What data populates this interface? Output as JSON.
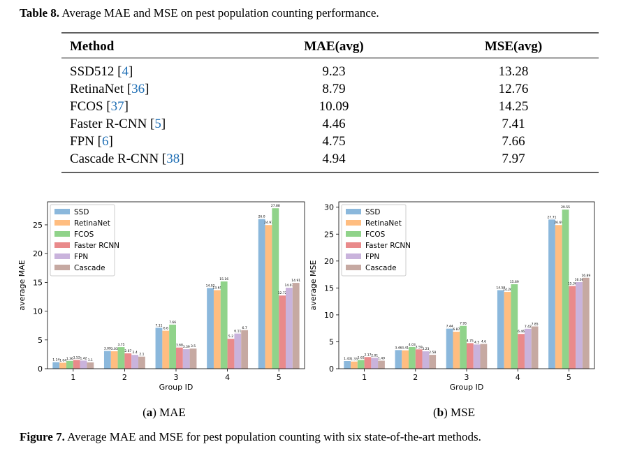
{
  "table": {
    "caption": [
      "Table 8.",
      " Average MAE and MSE on pest population counting performance."
    ],
    "header": [
      "Method",
      "MAE(avg)",
      "MSE(avg)"
    ],
    "rows": [
      [
        [
          "SSD512 [",
          "4",
          "]"
        ],
        9.23,
        13.28
      ],
      [
        [
          "RetinaNet [",
          "36",
          "]"
        ],
        8.79,
        12.76
      ],
      [
        [
          "FCOS [",
          "37",
          "]"
        ],
        10.09,
        14.25
      ],
      [
        [
          "Faster R-CNN [",
          "5",
          "]"
        ],
        4.46,
        7.41
      ],
      [
        [
          "FPN [",
          "6",
          "]"
        ],
        4.75,
        7.66
      ],
      [
        [
          "Cascade R-CNN [",
          "38",
          "]"
        ],
        4.94,
        7.97
      ]
    ]
  },
  "chart_data": [
    {
      "type": "bar",
      "xlabel": "Group ID",
      "ylabel": "average MAE",
      "legend": "upper left",
      "categories": [
        "1",
        "2",
        "3",
        "4",
        "5"
      ],
      "ylim": [
        0,
        29
      ],
      "yticks": [
        0,
        5,
        10,
        15,
        20,
        25
      ],
      "series": [
        {
          "name": "SSD",
          "color": "#8bb8dc",
          "values": [
            1.14,
            3.09,
            7.11,
            14.02,
            26.0
          ],
          "value_labels": [
            "1.14",
            "3.09",
            "7.11",
            "14.02",
            "26.0"
          ]
        },
        {
          "name": "RetinaNet",
          "color": "#ffbd80",
          "values": [
            1.04,
            3.03,
            6.6,
            13.65,
            24.97
          ],
          "value_labels": [
            "1.04",
            "3.03",
            "6.6",
            "13.65",
            "24.97"
          ]
        },
        {
          "name": "FCOS",
          "color": "#90d38a",
          "values": [
            1.36,
            3.75,
            7.66,
            15.16,
            27.88
          ],
          "value_labels": [
            "1.36",
            "3.75",
            "7.66",
            "15.16",
            "27.88"
          ]
        },
        {
          "name": "Faster RCNN",
          "color": "#e98a8b",
          "values": [
            1.52,
            2.67,
            3.68,
            5.2,
            12.72
          ],
          "value_labels": [
            "1.52",
            "2.67",
            "3.68",
            "5.2",
            "12.72"
          ]
        },
        {
          "name": "FPN",
          "color": "#c9b3dc",
          "values": [
            1.42,
            2.4,
            3.39,
            6.11,
            14.07
          ],
          "value_labels": [
            "1.42",
            "2.4",
            "3.39",
            "6.11",
            "14.07"
          ]
        },
        {
          "name": "Cascade",
          "color": "#c6a9a2",
          "values": [
            1.1,
            2.1,
            3.5,
            6.7,
            14.91
          ],
          "value_labels": [
            "1.1",
            "2.1",
            "3.5",
            "6.7",
            "14.91"
          ]
        }
      ]
    },
    {
      "type": "bar",
      "xlabel": "Group ID",
      "ylabel": "average MSE",
      "legend": "upper left",
      "categories": [
        "1",
        "2",
        "3",
        "4",
        "5"
      ],
      "ylim": [
        0,
        31
      ],
      "yticks": [
        0,
        5,
        10,
        15,
        20,
        25,
        30
      ],
      "series": [
        {
          "name": "SSD",
          "color": "#8bb8dc",
          "values": [
            1.43,
            3.46,
            7.44,
            14.59,
            27.71
          ],
          "value_labels": [
            "1.43",
            "3.46",
            "7.44",
            "14.59",
            "27.71"
          ]
        },
        {
          "name": "RetinaNet",
          "color": "#ffbd80",
          "values": [
            1.33,
            3.41,
            6.87,
            14.26,
            26.69
          ],
          "value_labels": [
            "1.33",
            "3.41",
            "6.87",
            "14.26",
            "26.69"
          ]
        },
        {
          "name": "FCOS",
          "color": "#90d38a",
          "values": [
            1.62,
            4.03,
            7.95,
            15.69,
            29.55
          ],
          "value_labels": [
            "1.62",
            "4.03",
            "7.95",
            "15.69",
            "29.55"
          ]
        },
        {
          "name": "Faster RCNN",
          "color": "#e98a8b",
          "values": [
            2.17,
            3.59,
            4.75,
            6.46,
            15.36
          ],
          "value_labels": [
            "2.17",
            "3.59",
            "4.75",
            "6.46",
            "15.36"
          ]
        },
        {
          "name": "FPN",
          "color": "#c9b3dc",
          "values": [
            2.01,
            3.23,
            4.5,
            7.42,
            16.08
          ],
          "value_labels": [
            "2.01",
            "3.23",
            "4.5",
            "7.42",
            "16.08"
          ]
        },
        {
          "name": "Cascade",
          "color": "#c6a9a2",
          "values": [
            1.49,
            2.58,
            4.6,
            7.85,
            16.89
          ],
          "value_labels": [
            "1.49",
            "2.58",
            "4.6",
            "7.85",
            "16.89"
          ]
        }
      ]
    }
  ],
  "figure": {
    "subcaptions": [
      [
        "(",
        "a",
        ") MAE"
      ],
      [
        "(",
        "b",
        ") MSE"
      ]
    ],
    "caption": [
      "Figure 7.",
      " Average MAE and MSE for pest population counting with six state-of-the-art methods."
    ]
  }
}
